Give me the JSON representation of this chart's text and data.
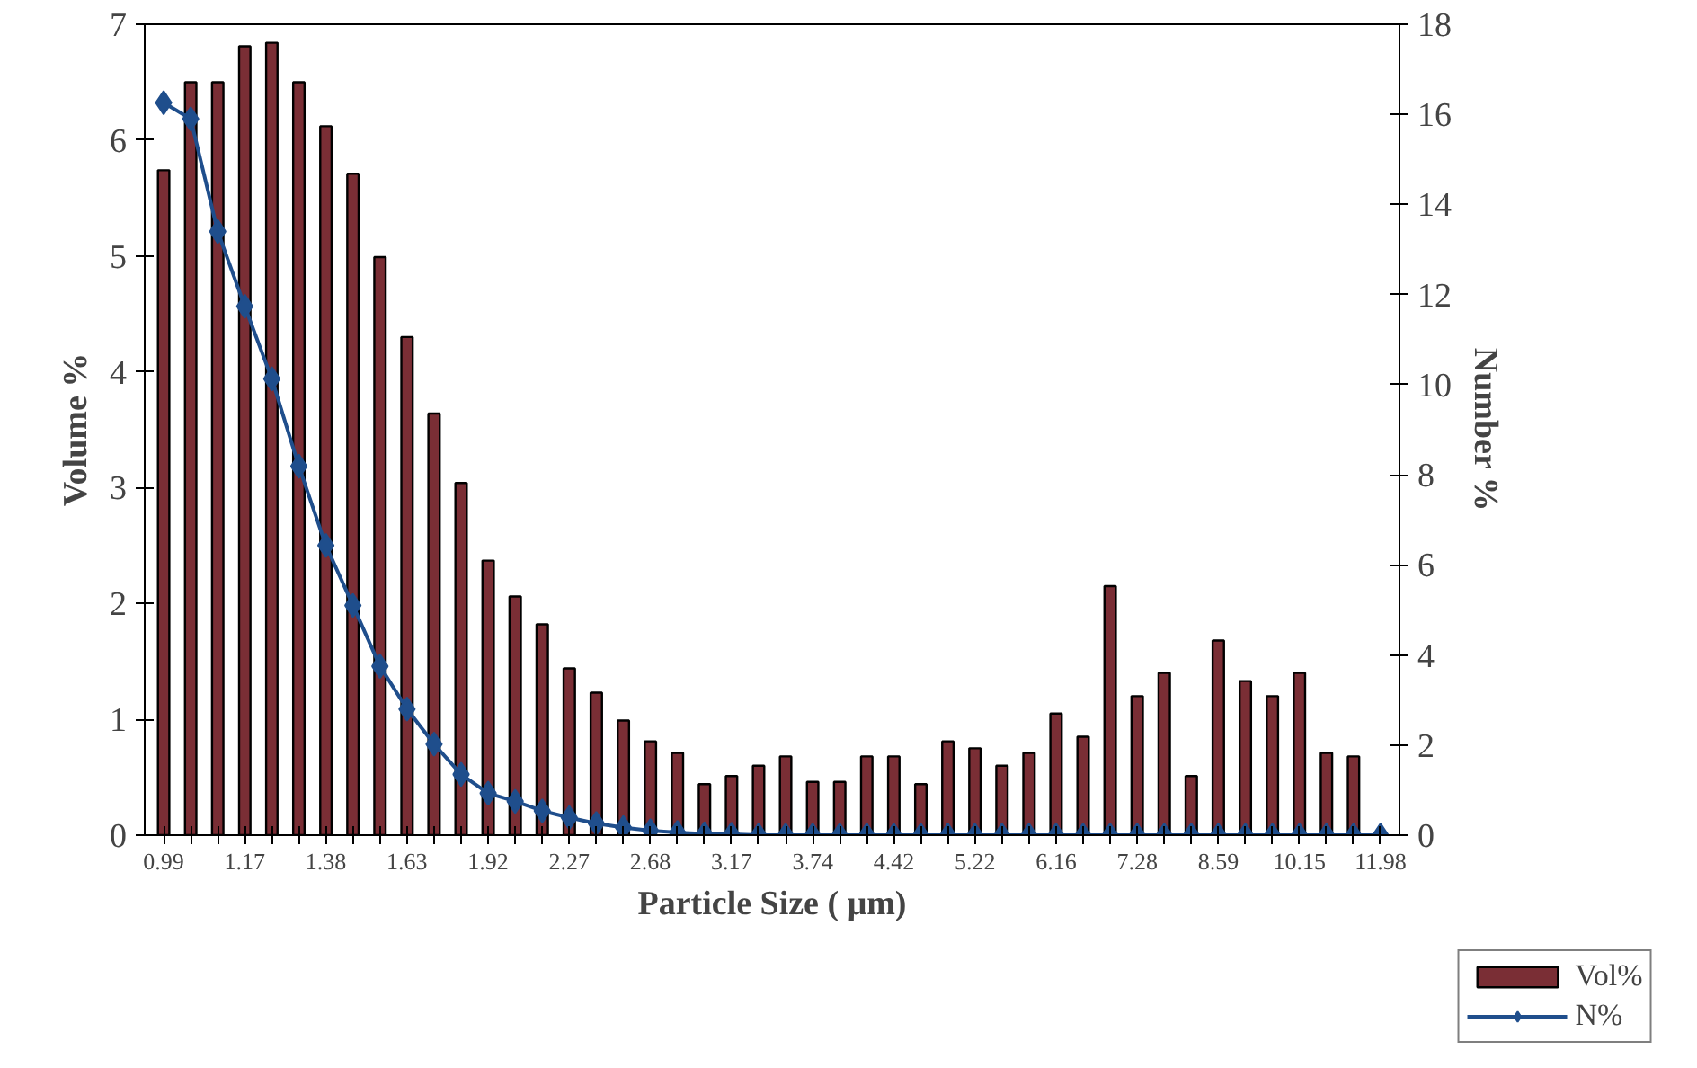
{
  "chart_data": {
    "type": "bar",
    "xlabel": "Particle Size ( μm)",
    "ylabel": "Volume %",
    "y2label": "Number %",
    "categories": [
      "0.99",
      null,
      null,
      "1.17",
      null,
      null,
      "1.38",
      null,
      null,
      "1.63",
      null,
      null,
      "1.92",
      null,
      null,
      "2.27",
      null,
      null,
      "2.68",
      null,
      null,
      "3.17",
      null,
      null,
      "3.74",
      null,
      null,
      "4.42",
      null,
      null,
      "5.22",
      null,
      null,
      "6.16",
      null,
      null,
      "7.28",
      null,
      null,
      "8.59",
      null,
      null,
      "10.15",
      null,
      null,
      "11.98"
    ],
    "series": [
      {
        "name": "Vol%",
        "color": "#7a2e35",
        "values": [
          5.74,
          6.5,
          6.5,
          6.81,
          6.84,
          6.5,
          6.12,
          5.71,
          4.99,
          4.3,
          3.64,
          3.04,
          2.37,
          2.06,
          1.82,
          1.44,
          1.23,
          0.99,
          0.81,
          0.71,
          0.44,
          0.51,
          0.6,
          0.68,
          0.46,
          0.46,
          0.68,
          0.68,
          0.44,
          0.81,
          0.75,
          0.6,
          0.71,
          1.05,
          0.85,
          2.15,
          1.2,
          1.4,
          0.51,
          1.68,
          1.33,
          1.2,
          1.4,
          0.71,
          0.68,
          null
        ]
      },
      {
        "name": "N%",
        "type": "line",
        "axis": "y2",
        "color": "#1f4e8c",
        "marker": "diamond",
        "values": [
          16.26,
          15.9,
          13.4,
          11.74,
          10.13,
          8.19,
          6.43,
          5.1,
          3.75,
          2.8,
          2.02,
          1.35,
          0.93,
          0.75,
          0.54,
          0.39,
          0.26,
          0.17,
          0.1,
          0.06,
          0.03,
          0.02,
          0,
          0,
          0,
          0,
          0,
          0,
          0,
          0,
          0,
          0,
          0,
          0,
          0,
          0,
          0,
          0,
          0,
          0,
          0,
          0,
          0,
          0,
          0,
          0
        ]
      }
    ],
    "ylim": [
      0,
      7
    ],
    "yticks": [
      0,
      1,
      2,
      3,
      4,
      5,
      6,
      7
    ],
    "y2lim": [
      0,
      18
    ],
    "y2ticks": [
      0,
      2,
      4,
      6,
      8,
      10,
      12,
      14,
      16,
      18
    ],
    "grid": false,
    "legend": "bottom right"
  }
}
